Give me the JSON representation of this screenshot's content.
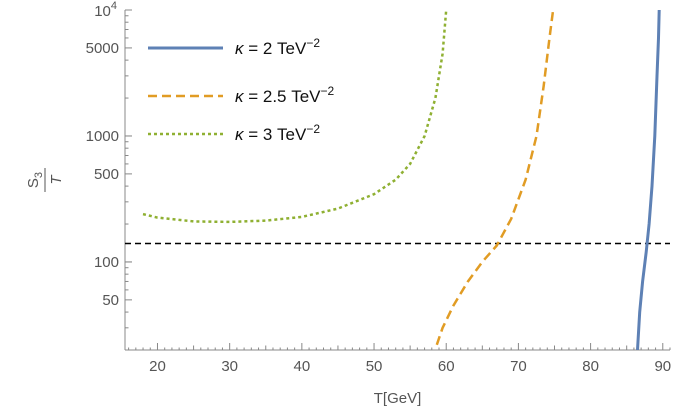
{
  "chart_data": {
    "type": "line",
    "xlabel": "T[GeV]",
    "ylabel": {
      "num_base": "S",
      "num_sub": "3",
      "den": "T"
    },
    "xlim": [
      15.5,
      91
    ],
    "ylim": [
      20,
      10000
    ],
    "yscale": "log",
    "x_ticks": [
      20,
      30,
      40,
      50,
      60,
      70,
      80,
      90
    ],
    "x_tick_labels": [
      "20",
      "30",
      "40",
      "50",
      "60",
      "70",
      "80",
      "90"
    ],
    "y_ticks": [
      50,
      100,
      500,
      1000,
      5000
    ],
    "y_tick_labels": [
      "50",
      "100",
      "500",
      "1000",
      "5000"
    ],
    "y_top_label": {
      "base": "10",
      "exp": "4"
    },
    "reference_line": {
      "y": 140,
      "style": "dashed",
      "color": "#000000"
    },
    "legend_position": "top-left",
    "grid": false,
    "series": [
      {
        "name": "κ = 2 TeV",
        "name_exp": "−2",
        "color": "#5E81B5",
        "style": "solid",
        "points": [
          [
            86.5,
            20
          ],
          [
            86.8,
            40
          ],
          [
            87.2,
            70
          ],
          [
            87.7,
            120
          ],
          [
            88.1,
            200
          ],
          [
            88.5,
            400
          ],
          [
            88.9,
            1000
          ],
          [
            89.2,
            3000
          ],
          [
            89.4,
            6000
          ],
          [
            89.5,
            10000
          ]
        ]
      },
      {
        "name": "κ = 2.5 TeV",
        "name_exp": "−2",
        "color": "#E19C24",
        "style": "dashed",
        "points": [
          [
            58.7,
            22
          ],
          [
            59.5,
            30
          ],
          [
            61,
            45
          ],
          [
            63,
            70
          ],
          [
            65,
            100
          ],
          [
            67,
            135
          ],
          [
            69,
            220
          ],
          [
            71,
            450
          ],
          [
            72.5,
            1000
          ],
          [
            73.5,
            2500
          ],
          [
            74.3,
            6000
          ],
          [
            74.8,
            10000
          ]
        ]
      },
      {
        "name": "κ = 3 TeV",
        "name_exp": "−2",
        "color": "#8FB032",
        "style": "dotted",
        "points": [
          [
            18,
            240
          ],
          [
            20,
            225
          ],
          [
            25,
            210
          ],
          [
            30,
            208
          ],
          [
            35,
            213
          ],
          [
            40,
            228
          ],
          [
            45,
            265
          ],
          [
            50,
            345
          ],
          [
            53,
            450
          ],
          [
            55,
            600
          ],
          [
            57,
            1000
          ],
          [
            58.5,
            2000
          ],
          [
            59.5,
            4500
          ],
          [
            60,
            10000
          ]
        ]
      }
    ]
  }
}
